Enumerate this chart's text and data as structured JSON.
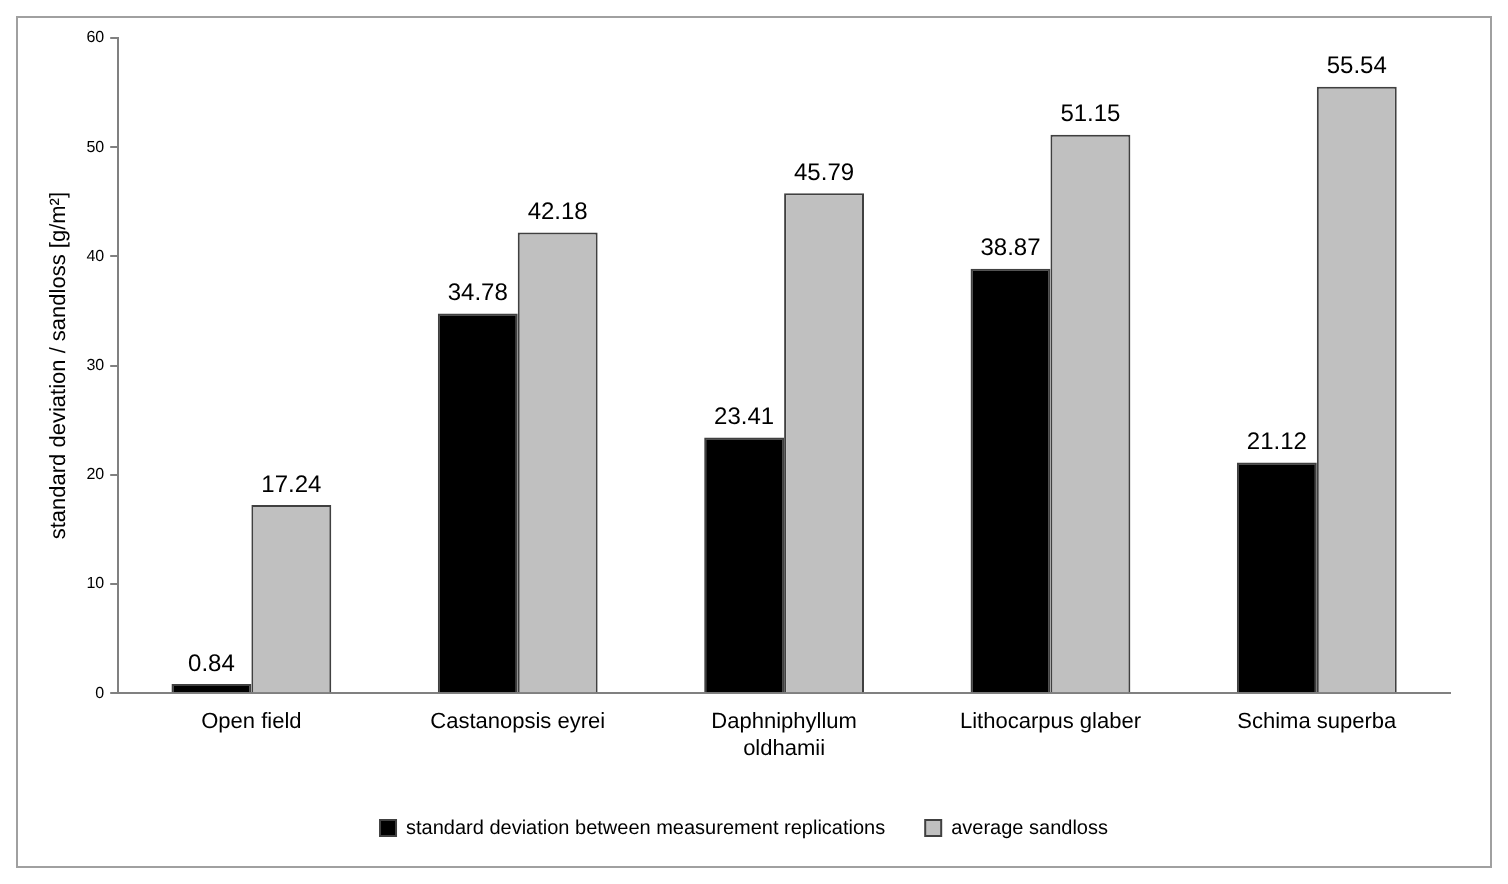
{
  "chart_data": {
    "type": "bar",
    "ylabel": "standard deviation / sandloss [g/m²]",
    "categories": [
      "Open field",
      "Castanopsis eyrei",
      "Daphniphyllum oldhamii",
      "Lithocarpus glaber",
      "Schima superba"
    ],
    "series": [
      {
        "name": "standard deviation between measurement replications",
        "color": "#000000",
        "values": [
          0.84,
          34.78,
          23.41,
          38.87,
          21.12
        ]
      },
      {
        "name": "average sandloss",
        "color": "#c0c0c0",
        "values": [
          17.24,
          42.18,
          45.79,
          51.15,
          55.54
        ]
      }
    ],
    "ylim": [
      0,
      60
    ],
    "yticks": [
      0,
      10,
      20,
      30,
      40,
      50,
      60
    ],
    "grid": false,
    "legend": "bottom",
    "data_labels": true
  }
}
